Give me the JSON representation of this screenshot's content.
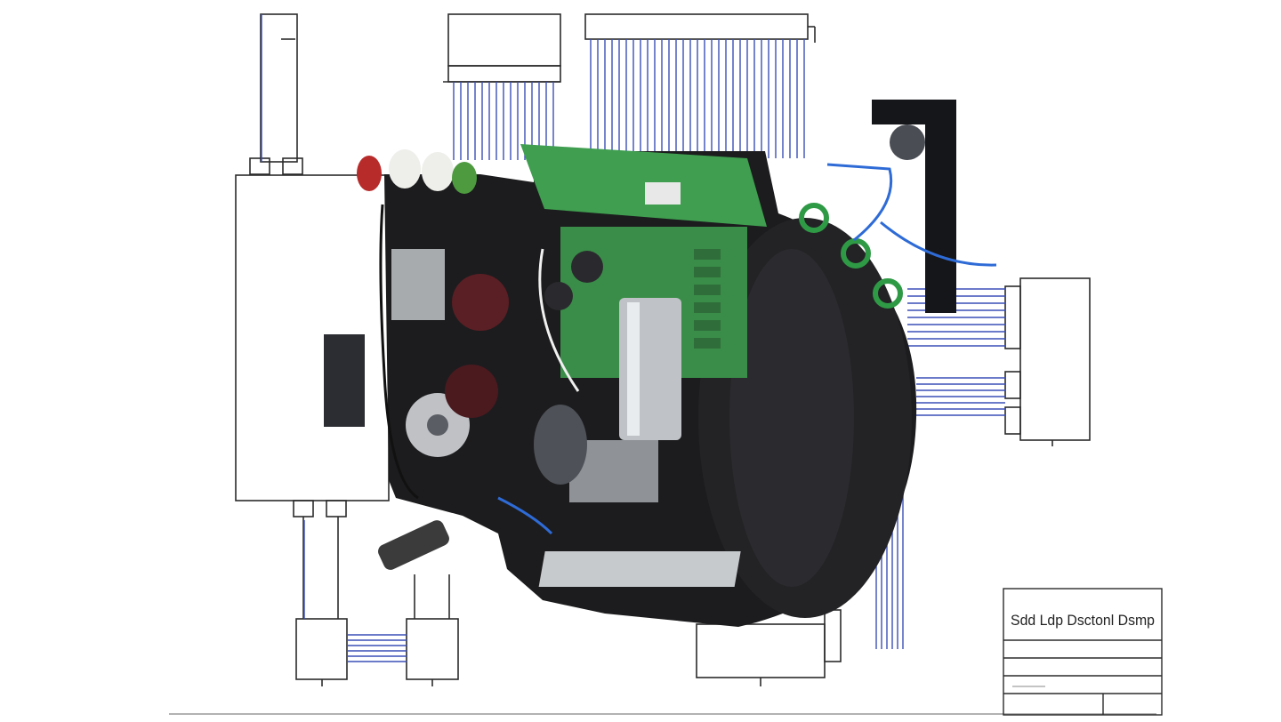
{
  "colors": {
    "background": "#ffffff",
    "line": "#2b2b2b",
    "wire_blue": "#3b4fb8",
    "body_black": "#1c1c1e",
    "pcb_green": "#3f9e4f",
    "metal": "#bfc3c7"
  },
  "title_block": {
    "title": "Sdd Ldp Dsctonl Dsmp"
  },
  "components": [
    "left-enclosure",
    "top-left-connector",
    "top-middle-connector-bank",
    "top-right-connector-bank",
    "right-terminal-box",
    "bottom-left-module-a",
    "bottom-left-module-b",
    "bottom-center-junction-box",
    "black-assembly-body",
    "green-pcb",
    "cylindrical-capacitor",
    "motor-mount"
  ]
}
